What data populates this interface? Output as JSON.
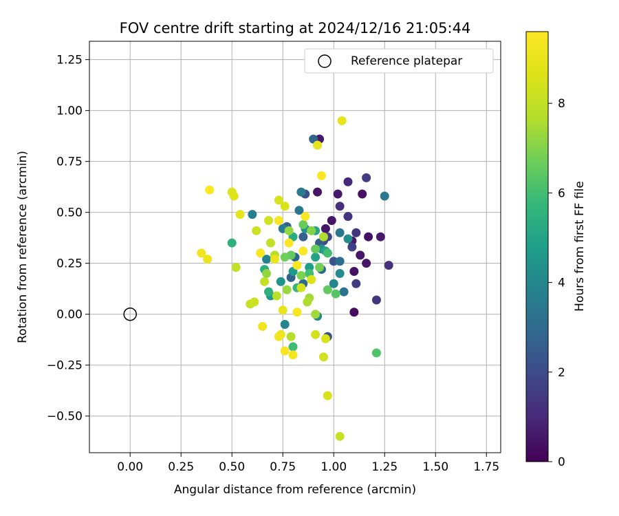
{
  "chart_data": {
    "type": "scatter",
    "title": "FOV centre drift starting at 2024/12/16 21:05:44",
    "xlabel": "Angular distance from reference (arcmin)",
    "ylabel": "Rotation from reference (arcmin)",
    "xlim": [
      -0.2,
      1.82
    ],
    "ylim": [
      -0.68,
      1.34
    ],
    "xticks": [
      0.0,
      0.25,
      0.5,
      0.75,
      1.0,
      1.25,
      1.5,
      1.75
    ],
    "xtick_labels": [
      "0.00",
      "0.25",
      "0.50",
      "0.75",
      "1.00",
      "1.25",
      "1.50",
      "1.75"
    ],
    "yticks": [
      -0.5,
      -0.25,
      0.0,
      0.25,
      0.5,
      0.75,
      1.0,
      1.25
    ],
    "ytick_labels": [
      "−0.50",
      "−0.25",
      "0.00",
      "0.25",
      "0.50",
      "0.75",
      "1.00",
      "1.25"
    ],
    "grid": true,
    "legend": {
      "placement": "top-right",
      "entries": [
        {
          "label": "Reference platepar",
          "marker": "open-circle",
          "x": 0.0,
          "y": 0.0
        }
      ]
    },
    "colorbar": {
      "label": "Hours from first FF file",
      "colormap": "viridis",
      "range": [
        0,
        9.6
      ],
      "ticks": [
        0,
        2,
        4,
        6,
        8
      ],
      "tick_labels": [
        "0",
        "2",
        "4",
        "6",
        "8"
      ]
    },
    "points": [
      {
        "x": 1.1,
        "y": 0.01,
        "hours": 0.3
      },
      {
        "x": 1.1,
        "y": 0.21,
        "hours": 0.4
      },
      {
        "x": 1.16,
        "y": 0.25,
        "hours": 0.5
      },
      {
        "x": 1.13,
        "y": 0.29,
        "hours": 0.5
      },
      {
        "x": 1.23,
        "y": 0.38,
        "hours": 0.6
      },
      {
        "x": 1.17,
        "y": 0.38,
        "hours": 0.4
      },
      {
        "x": 1.09,
        "y": 0.36,
        "hours": 0.5
      },
      {
        "x": 0.96,
        "y": 0.42,
        "hours": 0.5
      },
      {
        "x": 0.99,
        "y": 0.46,
        "hours": 0.5
      },
      {
        "x": 1.14,
        "y": 0.59,
        "hours": 0.4
      },
      {
        "x": 1.02,
        "y": 0.59,
        "hours": 0.6
      },
      {
        "x": 0.92,
        "y": 0.6,
        "hours": 0.5
      },
      {
        "x": 0.93,
        "y": 0.86,
        "hours": 0.6
      },
      {
        "x": 1.07,
        "y": 0.65,
        "hours": 1.0
      },
      {
        "x": 1.16,
        "y": 0.67,
        "hours": 1.5
      },
      {
        "x": 1.03,
        "y": 0.53,
        "hours": 1.2
      },
      {
        "x": 1.07,
        "y": 0.48,
        "hours": 1.3
      },
      {
        "x": 1.11,
        "y": 0.4,
        "hours": 1.3
      },
      {
        "x": 1.27,
        "y": 0.24,
        "hours": 1.2
      },
      {
        "x": 1.21,
        "y": 0.07,
        "hours": 1.4
      },
      {
        "x": 1.11,
        "y": 0.15,
        "hours": 1.5
      },
      {
        "x": 1.09,
        "y": 0.33,
        "hours": 1.7
      },
      {
        "x": 0.97,
        "y": 0.38,
        "hours": 1.8
      },
      {
        "x": 0.95,
        "y": 0.36,
        "hours": 2.0
      },
      {
        "x": 0.86,
        "y": 0.59,
        "hours": 2.2
      },
      {
        "x": 0.9,
        "y": 0.86,
        "hours": 2.8
      },
      {
        "x": 0.97,
        "y": -0.11,
        "hours": 2.2
      },
      {
        "x": 1.0,
        "y": 0.26,
        "hours": 2.3
      },
      {
        "x": 0.93,
        "y": 0.35,
        "hours": 2.5
      },
      {
        "x": 0.85,
        "y": 0.38,
        "hours": 2.6
      },
      {
        "x": 0.81,
        "y": 0.28,
        "hours": 2.8
      },
      {
        "x": 0.77,
        "y": 0.43,
        "hours": 2.6
      },
      {
        "x": 0.79,
        "y": 0.18,
        "hours": 2.7
      },
      {
        "x": 0.85,
        "y": 0.15,
        "hours": 3.0
      },
      {
        "x": 0.94,
        "y": 0.22,
        "hours": 3.0
      },
      {
        "x": 1.03,
        "y": 0.26,
        "hours": 3.1
      },
      {
        "x": 1.05,
        "y": 0.11,
        "hours": 3.3
      },
      {
        "x": 1.25,
        "y": 0.58,
        "hours": 3.5
      },
      {
        "x": 1.03,
        "y": 0.4,
        "hours": 3.4
      },
      {
        "x": 0.83,
        "y": 0.51,
        "hours": 3.4
      },
      {
        "x": 0.84,
        "y": 0.6,
        "hours": 3.5
      },
      {
        "x": 0.6,
        "y": 0.49,
        "hours": 3.7
      },
      {
        "x": 0.75,
        "y": 0.42,
        "hours": 3.6
      },
      {
        "x": 0.67,
        "y": 0.27,
        "hours": 3.8
      },
      {
        "x": 0.76,
        "y": -0.05,
        "hours": 3.9
      },
      {
        "x": 0.92,
        "y": -0.01,
        "hours": 4.0
      },
      {
        "x": 1.0,
        "y": 0.15,
        "hours": 3.9
      },
      {
        "x": 1.03,
        "y": 0.2,
        "hours": 4.1
      },
      {
        "x": 1.07,
        "y": 0.37,
        "hours": 4.3
      },
      {
        "x": 0.94,
        "y": 0.32,
        "hours": 4.3
      },
      {
        "x": 0.86,
        "y": 0.42,
        "hours": 4.4
      },
      {
        "x": 0.74,
        "y": 0.16,
        "hours": 4.5
      },
      {
        "x": 0.69,
        "y": 0.09,
        "hours": 4.6
      },
      {
        "x": 0.8,
        "y": 0.21,
        "hours": 4.7
      },
      {
        "x": 0.88,
        "y": 0.23,
        "hours": 4.8
      },
      {
        "x": 0.91,
        "y": 0.28,
        "hours": 5.0
      },
      {
        "x": 0.96,
        "y": 0.31,
        "hours": 5.0
      },
      {
        "x": 0.91,
        "y": 0.41,
        "hours": 5.1
      },
      {
        "x": 0.8,
        "y": 0.38,
        "hours": 5.3
      },
      {
        "x": 0.66,
        "y": 0.22,
        "hours": 5.3
      },
      {
        "x": 0.68,
        "y": 0.11,
        "hours": 5.5
      },
      {
        "x": 0.5,
        "y": 0.35,
        "hours": 5.5
      },
      {
        "x": 0.8,
        "y": -0.16,
        "hours": 5.9
      },
      {
        "x": 0.82,
        "y": 0.13,
        "hours": 5.7
      },
      {
        "x": 0.88,
        "y": 0.2,
        "hours": 6.0
      },
      {
        "x": 0.97,
        "y": 0.3,
        "hours": 6.0
      },
      {
        "x": 1.01,
        "y": 0.1,
        "hours": 6.3
      },
      {
        "x": 1.21,
        "y": -0.19,
        "hours": 6.2
      },
      {
        "x": 0.97,
        "y": 0.12,
        "hours": 6.5
      },
      {
        "x": 0.91,
        "y": 0.32,
        "hours": 6.6
      },
      {
        "x": 0.85,
        "y": 0.44,
        "hours": 6.6
      },
      {
        "x": 0.79,
        "y": 0.29,
        "hours": 6.5
      },
      {
        "x": 0.76,
        "y": 0.28,
        "hours": 6.7
      },
      {
        "x": 0.84,
        "y": 0.19,
        "hours": 6.9
      },
      {
        "x": 0.93,
        "y": 0.23,
        "hours": 6.8
      },
      {
        "x": 0.89,
        "y": 0.41,
        "hours": 7.0
      },
      {
        "x": 0.78,
        "y": 0.41,
        "hours": 7.2
      },
      {
        "x": 0.67,
        "y": 0.2,
        "hours": 7.2
      },
      {
        "x": 0.77,
        "y": 0.12,
        "hours": 7.3
      },
      {
        "x": 0.88,
        "y": 0.08,
        "hours": 7.4
      },
      {
        "x": 0.91,
        "y": 0.0,
        "hours": 7.4
      },
      {
        "x": 0.95,
        "y": 0.38,
        "hours": 7.6
      },
      {
        "x": 0.87,
        "y": 0.06,
        "hours": 7.6
      },
      {
        "x": 0.79,
        "y": -0.11,
        "hours": 7.7
      },
      {
        "x": 0.72,
        "y": 0.09,
        "hours": 7.8
      },
      {
        "x": 0.71,
        "y": 0.29,
        "hours": 7.8
      },
      {
        "x": 0.69,
        "y": 0.35,
        "hours": 8.0
      },
      {
        "x": 0.66,
        "y": 0.16,
        "hours": 8.0
      },
      {
        "x": 0.59,
        "y": 0.05,
        "hours": 8.1
      },
      {
        "x": 0.61,
        "y": 0.06,
        "hours": 8.2
      },
      {
        "x": 0.52,
        "y": 0.23,
        "hours": 8.0
      },
      {
        "x": 0.62,
        "y": 0.41,
        "hours": 8.2
      },
      {
        "x": 0.68,
        "y": 0.46,
        "hours": 8.3
      },
      {
        "x": 0.73,
        "y": 0.56,
        "hours": 8.5
      },
      {
        "x": 0.76,
        "y": 0.53,
        "hours": 8.5
      },
      {
        "x": 0.84,
        "y": 0.13,
        "hours": 8.4
      },
      {
        "x": 0.89,
        "y": 0.17,
        "hours": 8.6
      },
      {
        "x": 0.91,
        "y": -0.1,
        "hours": 8.4
      },
      {
        "x": 0.95,
        "y": -0.21,
        "hours": 8.3
      },
      {
        "x": 0.96,
        "y": -0.12,
        "hours": 8.6
      },
      {
        "x": 0.97,
        "y": -0.4,
        "hours": 8.5
      },
      {
        "x": 1.03,
        "y": -0.6,
        "hours": 8.1
      },
      {
        "x": 1.04,
        "y": 0.95,
        "hours": 8.9
      },
      {
        "x": 0.92,
        "y": 0.83,
        "hours": 8.9
      },
      {
        "x": 0.51,
        "y": 0.58,
        "hours": 8.8
      },
      {
        "x": 0.5,
        "y": 0.6,
        "hours": 8.7
      },
      {
        "x": 0.54,
        "y": 0.49,
        "hours": 8.9
      },
      {
        "x": 0.71,
        "y": 0.27,
        "hours": 9.0
      },
      {
        "x": 0.75,
        "y": 0.02,
        "hours": 9.0
      },
      {
        "x": 0.74,
        "y": -0.1,
        "hours": 9.1
      },
      {
        "x": 0.73,
        "y": -0.11,
        "hours": 9.2
      },
      {
        "x": 0.65,
        "y": -0.06,
        "hours": 9.2
      },
      {
        "x": 0.38,
        "y": 0.27,
        "hours": 9.1
      },
      {
        "x": 0.35,
        "y": 0.3,
        "hours": 9.2
      },
      {
        "x": 0.76,
        "y": -0.18,
        "hours": 9.4
      },
      {
        "x": 0.8,
        "y": -0.2,
        "hours": 9.3
      },
      {
        "x": 0.82,
        "y": 0.01,
        "hours": 9.4
      },
      {
        "x": 0.82,
        "y": 0.24,
        "hours": 9.4
      },
      {
        "x": 0.85,
        "y": 0.31,
        "hours": 9.5
      },
      {
        "x": 0.86,
        "y": 0.48,
        "hours": 9.5
      },
      {
        "x": 0.73,
        "y": 0.46,
        "hours": 9.5
      },
      {
        "x": 0.64,
        "y": 0.3,
        "hours": 9.5
      },
      {
        "x": 0.78,
        "y": 0.35,
        "hours": 9.6
      },
      {
        "x": 0.39,
        "y": 0.61,
        "hours": 9.6
      },
      {
        "x": 0.94,
        "y": 0.68,
        "hours": 9.6
      }
    ]
  }
}
